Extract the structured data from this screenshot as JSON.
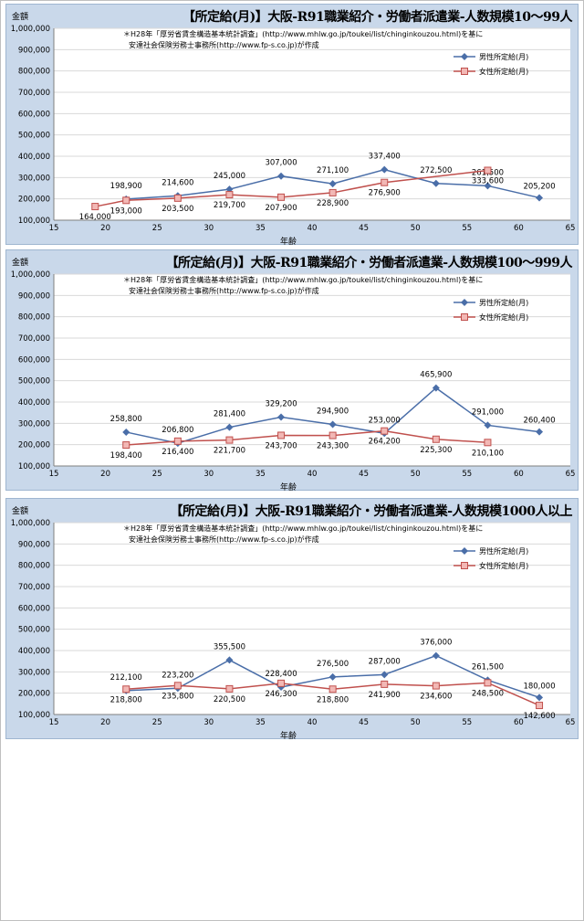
{
  "source_note_1": "＊H28年「厚労省賃金構造基本統計調査」(http://www.mhlw.go.jp/toukei/list/chinginkouzou.html)を基に",
  "source_note_2": "安達社会保険労務士事務所(http://www.fp-s.co.jp)が作成",
  "y_unit_label": "金額",
  "x_axis_label": "年齢",
  "legend_male": "男性所定給(月)",
  "legend_female": "女性所定給(月)",
  "colors": {
    "male": "#4a6ea8",
    "female": "#c0504d",
    "female_fill": "#f2b8b5",
    "panel_bg": "#c9d8ea",
    "plot_bg": "#ffffff"
  },
  "chart_data": [
    {
      "type": "line",
      "title": "【所定給(月)】大阪-R91職業紹介・労働者派遣業-人数規模10～99人",
      "xlim": [
        15,
        65
      ],
      "ylim": [
        100000,
        1000000
      ],
      "xticks": [
        15,
        20,
        25,
        30,
        35,
        40,
        45,
        50,
        55,
        60,
        65
      ],
      "yticks": [
        100000,
        200000,
        300000,
        400000,
        500000,
        600000,
        700000,
        800000,
        900000,
        1000000
      ],
      "yticklabels": [
        "100,000",
        "200,000",
        "300,000",
        "400,000",
        "500,000",
        "600,000",
        "700,000",
        "800,000",
        "900,000",
        "1,000,000"
      ],
      "series": [
        {
          "name": "男性所定給(月)",
          "x": [
            22,
            27,
            32,
            37,
            42,
            47,
            52,
            57,
            62
          ],
          "values": [
            198900,
            214600,
            245000,
            307000,
            271100,
            337400,
            272500,
            261500,
            205200
          ],
          "labels": [
            "198,900",
            "214,600",
            "245,000",
            "307,000",
            "271,100",
            "337,400",
            "272,500",
            "261,500",
            "205,200"
          ]
        },
        {
          "name": "女性所定給(月)",
          "x": [
            19,
            22,
            27,
            32,
            37,
            42,
            47,
            57
          ],
          "values": [
            164000,
            193000,
            203500,
            219700,
            207900,
            228900,
            276900,
            333600
          ],
          "labels": [
            "164,000",
            "193,000",
            "203,500",
            "219,700",
            "207,900",
            "228,900",
            "276,900",
            "333,600"
          ]
        }
      ]
    },
    {
      "type": "line",
      "title": "【所定給(月)】大阪-R91職業紹介・労働者派遣業-人数規模100～999人",
      "xlim": [
        15,
        65
      ],
      "ylim": [
        100000,
        1000000
      ],
      "xticks": [
        15,
        20,
        25,
        30,
        35,
        40,
        45,
        50,
        55,
        60,
        65
      ],
      "yticks": [
        100000,
        200000,
        300000,
        400000,
        500000,
        600000,
        700000,
        800000,
        900000,
        1000000
      ],
      "yticklabels": [
        "100,000",
        "200,000",
        "300,000",
        "400,000",
        "500,000",
        "600,000",
        "700,000",
        "800,000",
        "900,000",
        "1,000,000"
      ],
      "series": [
        {
          "name": "男性所定給(月)",
          "x": [
            22,
            27,
            32,
            37,
            42,
            47,
            52,
            57,
            62
          ],
          "values": [
            258800,
            206800,
            281400,
            329200,
            294900,
            253000,
            465900,
            291000,
            260400
          ],
          "labels": [
            "258,800",
            "206,800",
            "281,400",
            "329,200",
            "294,900",
            "253,000",
            "465,900",
            "291,000",
            "260,400"
          ]
        },
        {
          "name": "女性所定給(月)",
          "x": [
            22,
            27,
            32,
            37,
            42,
            47,
            52,
            57
          ],
          "values": [
            198400,
            216400,
            221700,
            243700,
            243300,
            264200,
            225300,
            210100
          ],
          "labels": [
            "198,400",
            "216,400",
            "221,700",
            "243,700",
            "243,300",
            "264,200",
            "225,300",
            "210,100"
          ]
        }
      ]
    },
    {
      "type": "line",
      "title": "【所定給(月)】大阪-R91職業紹介・労働者派遣業-人数規模1000人以上",
      "xlim": [
        15,
        65
      ],
      "ylim": [
        100000,
        1000000
      ],
      "xticks": [
        15,
        20,
        25,
        30,
        35,
        40,
        45,
        50,
        55,
        60,
        65
      ],
      "yticks": [
        100000,
        200000,
        300000,
        400000,
        500000,
        600000,
        700000,
        800000,
        900000,
        1000000
      ],
      "yticklabels": [
        "100,000",
        "200,000",
        "300,000",
        "400,000",
        "500,000",
        "600,000",
        "700,000",
        "800,000",
        "900,000",
        "1,000,000"
      ],
      "series": [
        {
          "name": "男性所定給(月)",
          "x": [
            22,
            27,
            32,
            37,
            42,
            47,
            52,
            57,
            62
          ],
          "values": [
            212100,
            223200,
            355500,
            228400,
            276500,
            287000,
            376000,
            261500,
            180000
          ],
          "labels": [
            "212,100",
            "223,200",
            "355,500",
            "228,400",
            "276,500",
            "287,000",
            "376,000",
            "261,500",
            "180,000"
          ]
        },
        {
          "name": "女性所定給(月)",
          "x": [
            22,
            27,
            32,
            37,
            42,
            47,
            52,
            57,
            62
          ],
          "values": [
            218800,
            235800,
            220500,
            246300,
            218800,
            241900,
            234600,
            248500,
            142600
          ],
          "labels": [
            "218,800",
            "235,800",
            "220,500",
            "246,300",
            "218,800",
            "241,900",
            "234,600",
            "248,500",
            "142,600"
          ]
        }
      ]
    }
  ]
}
